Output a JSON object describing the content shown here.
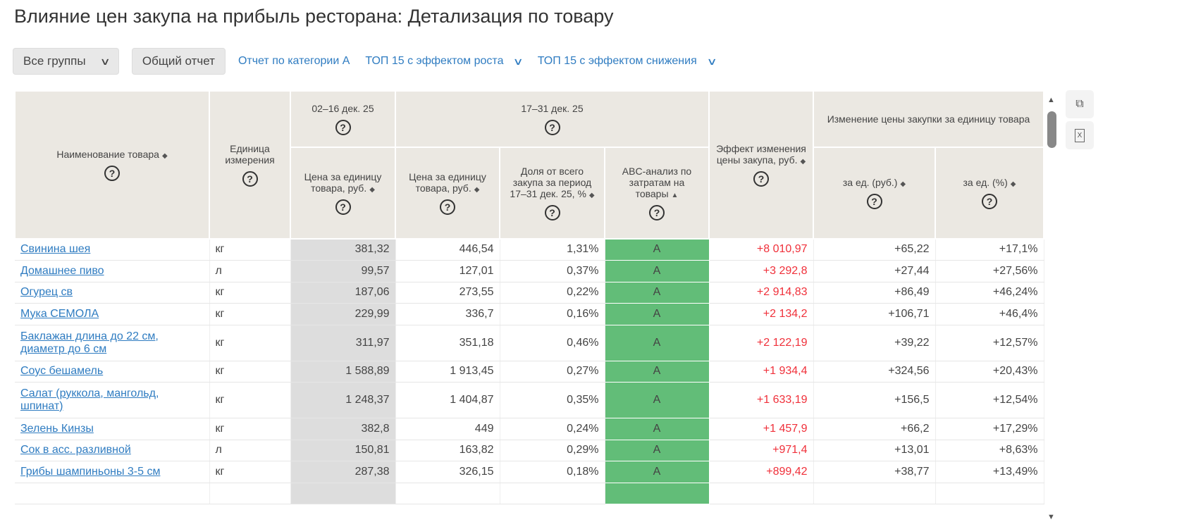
{
  "title": "Влияние цен закупа на прибыль ресторана: Детализация по товару",
  "toolbar": {
    "groups": "Все группы",
    "general": "Общий отчет",
    "category": "Отчет по категории А",
    "top_growth": "ТОП 15 с эффектом роста",
    "top_decline": "ТОП 15 с эффектом снижения"
  },
  "headers": {
    "name": "Наименование товара",
    "unit": "Единица измерения",
    "period1": "02–16 дек. 25",
    "period2": "17–31 дек. 25",
    "price1": "Цена за единицу товара, руб.",
    "price2": "Цена за единицу товара, руб.",
    "share": "Доля от всего закупа за период 17–31 дек. 25, %",
    "abc": "ABC-анализ по затратам на товары",
    "effect": "Эффект изменения цены закупа, руб.",
    "change": "Изменение цены закупки за единицу товара",
    "change_rub": "за ед. (руб.)",
    "change_pct": "за ед. (%)",
    "help": "?"
  },
  "rows": [
    {
      "name": "Свинина шея",
      "unit": "кг",
      "p1": "381,32",
      "p2": "446,54",
      "share": "1,31%",
      "abc": "A",
      "effect": "+8 010,97",
      "d_rub": "+65,22",
      "d_pct": "+17,1%"
    },
    {
      "name": "Домашнее пиво",
      "unit": "л",
      "p1": "99,57",
      "p2": "127,01",
      "share": "0,37%",
      "abc": "A",
      "effect": "+3 292,8",
      "d_rub": "+27,44",
      "d_pct": "+27,56%"
    },
    {
      "name": "Огурец св",
      "unit": "кг",
      "p1": "187,06",
      "p2": "273,55",
      "share": "0,22%",
      "abc": "A",
      "effect": "+2 914,83",
      "d_rub": "+86,49",
      "d_pct": "+46,24%"
    },
    {
      "name": "Мука СЕМОЛА",
      "unit": "кг",
      "p1": "229,99",
      "p2": "336,7",
      "share": "0,16%",
      "abc": "A",
      "effect": "+2 134,2",
      "d_rub": "+106,71",
      "d_pct": "+46,4%"
    },
    {
      "name": "Баклажан длина до 22 см, диаметр до 6 см",
      "unit": "кг",
      "p1": "311,97",
      "p2": "351,18",
      "share": "0,46%",
      "abc": "A",
      "effect": "+2 122,19",
      "d_rub": "+39,22",
      "d_pct": "+12,57%"
    },
    {
      "name": "Соус бешамель",
      "unit": "кг",
      "p1": "1 588,89",
      "p2": "1 913,45",
      "share": "0,27%",
      "abc": "A",
      "effect": "+1 934,4",
      "d_rub": "+324,56",
      "d_pct": "+20,43%"
    },
    {
      "name": "Салат (руккола, мангольд, шпинат)",
      "unit": "кг",
      "p1": "1 248,37",
      "p2": "1 404,87",
      "share": "0,35%",
      "abc": "A",
      "effect": "+1 633,19",
      "d_rub": "+156,5",
      "d_pct": "+12,54%"
    },
    {
      "name": "Зелень Кинзы",
      "unit": "кг",
      "p1": "382,8",
      "p2": "449",
      "share": "0,24%",
      "abc": "A",
      "effect": "+1 457,9",
      "d_rub": "+66,2",
      "d_pct": "+17,29%"
    },
    {
      "name": "Сок в асс. разливной",
      "unit": "л",
      "p1": "150,81",
      "p2": "163,82",
      "share": "0,29%",
      "abc": "A",
      "effect": "+971,4",
      "d_rub": "+13,01",
      "d_pct": "+8,63%"
    },
    {
      "name": "Грибы шампиньоны 3-5 см",
      "unit": "кг",
      "p1": "287,38",
      "p2": "326,15",
      "share": "0,18%",
      "abc": "A",
      "effect": "+899,42",
      "d_rub": "+38,77",
      "d_pct": "+13,49%"
    },
    {
      "name": "",
      "unit": "",
      "p1": "",
      "p2": "",
      "share": "",
      "abc": "",
      "effect": "",
      "d_rub": "",
      "d_pct": ""
    }
  ]
}
